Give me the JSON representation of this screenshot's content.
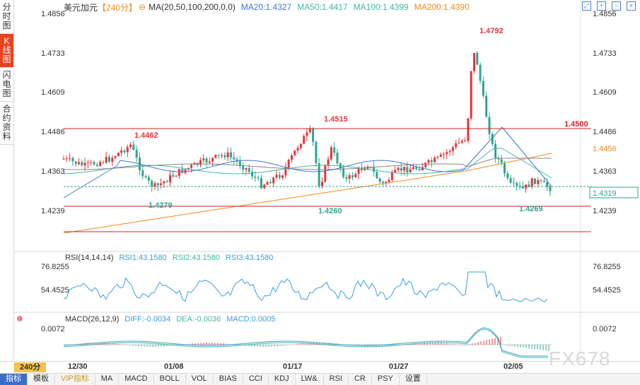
{
  "side_tabs": [
    {
      "label": "分时图",
      "active": false
    },
    {
      "label": "K线图",
      "active": true
    },
    {
      "label": "闪电图",
      "active": false
    },
    {
      "label": "合约资料",
      "active": false
    }
  ],
  "header": {
    "symbol": "美元加元",
    "period": "【240分】",
    "ma_label": "MA(20,50,100,200,0,0)",
    "ma20": "MA20:1.4327",
    "ma50": "MA50:1.4417",
    "ma100": "MA100:1.4399",
    "ma200": "MA200:1.4390"
  },
  "price_axis": [
    "1.4856",
    "1.4733",
    "1.4609",
    "1.4486",
    "1.4363",
    "1.4239"
  ],
  "price_tags": {
    "line_1450": "1.4500",
    "ma_tag": "1.4456",
    "last": "1.4319"
  },
  "annotations": {
    "high1": "1.4462",
    "low1": "1.4279",
    "high2": "1.4515",
    "low2": "1.4260",
    "peak": "1.4792",
    "low3": "1.4269"
  },
  "rsi": {
    "label": "RSI(14,14,14)",
    "rsi1": "RSI1:43.1580",
    "rsi2": "RSI2:43.1580",
    "rsi3": "RSI3:43.1580",
    "axis": [
      "76.8255",
      "54.4525"
    ]
  },
  "macd": {
    "label": "MACD(26,12,9)",
    "diff": "DIFF:-0.0034",
    "dea": "DEA:-0.0036",
    "macd": "MACD:0.0005",
    "axis": [
      "0.0072"
    ]
  },
  "x_axis": {
    "period_badge": "240分",
    "labels": [
      "12/30",
      "01/08",
      "01/17",
      "01/27",
      "02/05"
    ]
  },
  "indicator_tabs": [
    "指标",
    "模板",
    "VIP指标",
    "MA",
    "MACD",
    "BOLL",
    "VOL",
    "BIAS",
    "CCI",
    "KDJ",
    "LW&",
    "RSI",
    "CR",
    "PSY",
    "设置"
  ],
  "watermark": "FX678",
  "colors": {
    "up": "#e8343b",
    "down": "#2fa58c",
    "ma20": "#3a78d8",
    "ma50": "#3fb8a0",
    "ma100": "#888888",
    "ma200": "#f08a1c",
    "accent": "#e8431f"
  }
}
